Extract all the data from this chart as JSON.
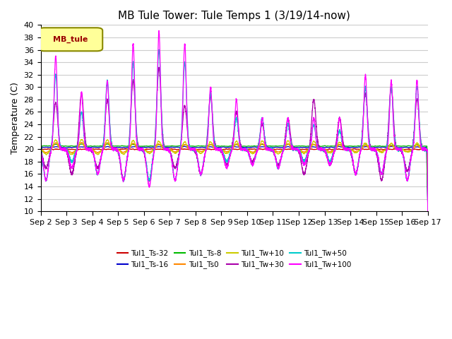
{
  "title": "MB Tule Tower: Tule Temps 1 (3/19/14-now)",
  "ylabel": "Temperature (C)",
  "ylim": [
    10,
    40
  ],
  "yticks": [
    10,
    12,
    14,
    16,
    18,
    20,
    22,
    24,
    26,
    28,
    30,
    32,
    34,
    36,
    38,
    40
  ],
  "series_names": [
    "Tul1_Ts-32",
    "Tul1_Ts-16",
    "Tul1_Ts-8",
    "Tul1_Ts0",
    "Tul1_Tw+10",
    "Tul1_Tw+30",
    "Tul1_Tw+50",
    "Tul1_Tw+100"
  ],
  "series_colors": [
    "#cc0000",
    "#0000cc",
    "#00bb00",
    "#ff8800",
    "#cccc00",
    "#aa00aa",
    "#00cccc",
    "#ff00ff"
  ],
  "legend_box_color": "#ffff99",
  "legend_box_edge": "#888800",
  "legend_label": "MB_tule",
  "legend_label_color": "#990000",
  "n_days": 15,
  "base_temp": 20.0,
  "background_color": "#ffffff",
  "grid_color": "#cccccc"
}
